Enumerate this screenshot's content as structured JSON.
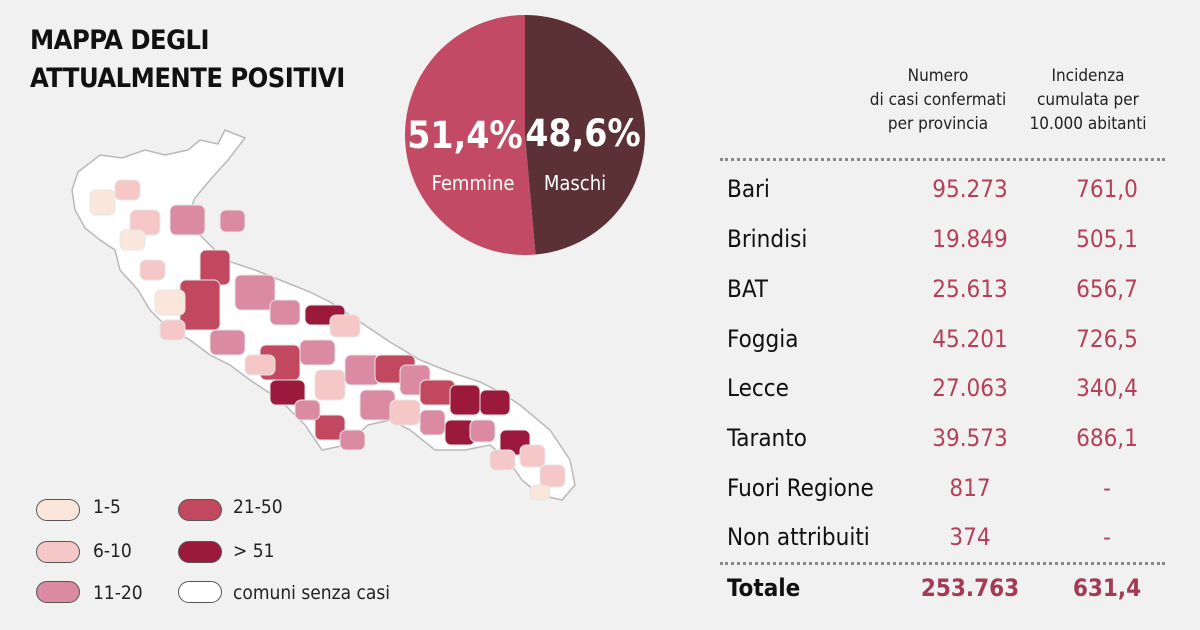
{
  "title_lines": [
    "MAPPA DEGLI",
    "ATTUALMENTE POSITIVI"
  ],
  "chart_data": [
    {
      "type": "pie",
      "slices": [
        {
          "label": "Femmine",
          "value": 51.4,
          "display": "51,4%",
          "color": "#c34a64"
        },
        {
          "label": "Maschi",
          "value": 48.6,
          "display": "48,6%",
          "color": "#5b3136"
        }
      ]
    },
    {
      "type": "table",
      "columns": [
        "",
        "Numero\ndi casi confermati\nper provincia",
        "Incidenza\ncumulata per\n10.000 abitanti"
      ],
      "header": {
        "cases": [
          "Numero",
          "di casi confermati",
          "per provincia"
        ],
        "incidence": [
          "Incidenza",
          "cumulata per",
          "10.000 abitanti"
        ]
      },
      "rows": [
        {
          "name": "Bari",
          "cases": "95.273",
          "incidence": "761,0"
        },
        {
          "name": "Brindisi",
          "cases": "19.849",
          "incidence": "505,1"
        },
        {
          "name": "BAT",
          "cases": "25.613",
          "incidence": "656,7"
        },
        {
          "name": "Foggia",
          "cases": "45.201",
          "incidence": "726,5"
        },
        {
          "name": "Lecce",
          "cases": "27.063",
          "incidence": "340,4"
        },
        {
          "name": "Taranto",
          "cases": "39.573",
          "incidence": "686,1"
        },
        {
          "name": "Fuori Regione",
          "cases": "817",
          "incidence": "-"
        },
        {
          "name": "Non attribuiti",
          "cases": "374",
          "incidence": "-"
        }
      ],
      "total": {
        "name": "Totale",
        "cases": "253.763",
        "incidence": "631,4"
      }
    }
  ],
  "legend": [
    {
      "label": "1-5",
      "color": "#fbe6dc"
    },
    {
      "label": "6-10",
      "color": "#f5c7c6"
    },
    {
      "label": "11-20",
      "color": "#da8aa2"
    },
    {
      "label": "21-50",
      "color": "#c1485f"
    },
    {
      "label": "> 51",
      "color": "#9b1a3b"
    },
    {
      "label": "comuni senza casi",
      "color": "#ffffff"
    }
  ],
  "colors": {
    "accent_text": "#b5405a",
    "background": "#f1f1f1"
  }
}
